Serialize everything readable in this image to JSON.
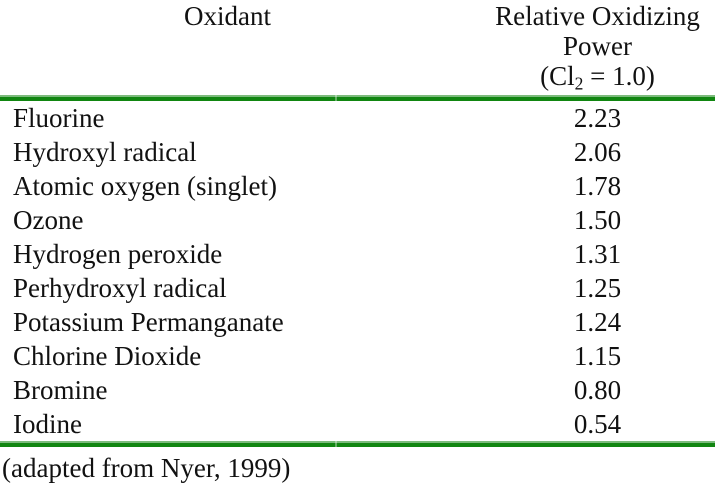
{
  "colors": {
    "background": "#ffffff",
    "text": "#111111",
    "rule_green": "#118611",
    "rule_green_light": "#7cbb7c"
  },
  "table": {
    "column_headers": {
      "oxidant": "Oxidant",
      "power_line1": "Relative Oxidizing",
      "power_line2": "Power",
      "power_line3_prefix": "(Cl",
      "power_line3_sub": "2",
      "power_line3_suffix": " = 1.0)"
    },
    "rows": [
      {
        "name": "Fluorine",
        "value": "2.23"
      },
      {
        "name": "Hydroxyl radical",
        "value": "2.06"
      },
      {
        "name": "Atomic oxygen (singlet)",
        "value": "1.78"
      },
      {
        "name": "Ozone",
        "value": "1.50"
      },
      {
        "name": "Hydrogen peroxide",
        "value": "1.31"
      },
      {
        "name": "Perhydroxyl radical",
        "value": "1.25"
      },
      {
        "name": "Potassium Permanganate",
        "value": "1.24"
      },
      {
        "name": "Chlorine Dioxide",
        "value": "1.15"
      },
      {
        "name": "Bromine",
        "value": "0.80"
      },
      {
        "name": "Iodine",
        "value": "0.54"
      }
    ]
  },
  "footer": {
    "citation": "(adapted from Nyer, 1999)"
  }
}
